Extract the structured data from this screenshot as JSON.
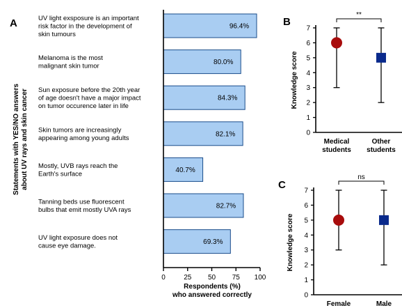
{
  "chart_data": [
    {
      "panel": "A",
      "type": "bar",
      "orientation": "horizontal",
      "ylabel": [
        "Statements with YES/NO answers",
        "about UV rays and skin cancer"
      ],
      "xlabel": [
        "Respondents (%)",
        "who answered correctly"
      ],
      "xlim": [
        0,
        100
      ],
      "xticks": [
        "0",
        "25",
        "50",
        "75",
        "100"
      ],
      "categories": [
        [
          "UV light exsposure is an important",
          "risk factor in the development of",
          "skin tumours"
        ],
        [
          "Melanoma is the most",
          "malignant skin tumor"
        ],
        [
          "Sun exposure before the 20th year",
          "of age doesn't have a major impact",
          "on tumor occurence later in life"
        ],
        [
          "Skin tumors are increasingly",
          "appearing among young adults"
        ],
        [
          "Mostly, UVB rays reach the",
          "Earth's surface"
        ],
        [
          "Tanning beds use fluorescent",
          "bulbs that emit mostly UVA rays"
        ],
        [
          "UV light exposure does not",
          "cause eye damage."
        ]
      ],
      "values": [
        96.4,
        80.0,
        84.3,
        82.1,
        40.7,
        82.7,
        69.3
      ],
      "labels": [
        "96.4%",
        "80.0%",
        "84.3%",
        "82.1%",
        "40.7%",
        "82.7%",
        "69.3%"
      ],
      "bar_color": "#a9cdf2",
      "grid": false
    },
    {
      "panel": "B",
      "type": "scatter",
      "ylabel": "Knowledge score",
      "ylim": [
        0,
        7
      ],
      "yticks": [
        "0",
        "1",
        "2",
        "3",
        "4",
        "5",
        "6",
        "7"
      ],
      "categories": [
        [
          "Medical",
          "students"
        ],
        [
          "Other",
          "students"
        ]
      ],
      "points": [
        {
          "value": 6,
          "low": 3,
          "high": 7,
          "marker": "circle",
          "color": "#a80c0c"
        },
        {
          "value": 5,
          "low": 2,
          "high": 7,
          "marker": "square",
          "color": "#0a2a8c"
        }
      ],
      "significance": "**",
      "grid": false
    },
    {
      "panel": "C",
      "type": "scatter",
      "ylabel": "Knowledge score",
      "ylim": [
        0,
        7
      ],
      "yticks": [
        "0",
        "1",
        "2",
        "3",
        "4",
        "5",
        "6",
        "7"
      ],
      "categories": [
        [
          "Female"
        ],
        [
          "Male"
        ]
      ],
      "points": [
        {
          "value": 5,
          "low": 3,
          "high": 7,
          "marker": "circle",
          "color": "#a80c0c"
        },
        {
          "value": 5,
          "low": 2,
          "high": 7,
          "marker": "square",
          "color": "#0a2a8c"
        }
      ],
      "significance": "ns",
      "grid": false
    }
  ]
}
